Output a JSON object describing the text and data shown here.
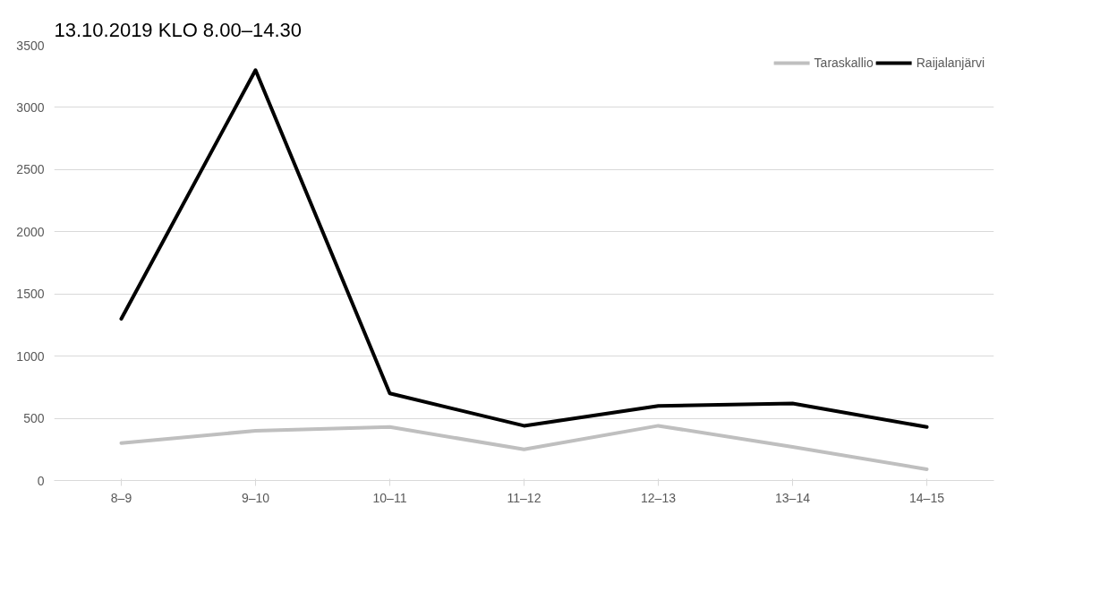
{
  "chart_data": {
    "type": "line",
    "title": "13.10.2019 KLO 8.00–14.30",
    "categories": [
      "8–9",
      "9–10",
      "10–11",
      "11–12",
      "12–13",
      "13–14",
      "14–15"
    ],
    "series": [
      {
        "name": "Taraskallio",
        "color": "#bfbfbf",
        "values": [
          300,
          400,
          430,
          250,
          440,
          270,
          90
        ]
      },
      {
        "name": "Raijalanjärvi",
        "color": "#000000",
        "values": [
          1300,
          3300,
          700,
          440,
          600,
          620,
          430
        ]
      }
    ],
    "ylim": [
      0,
      3500
    ],
    "yticks": [
      0,
      500,
      1000,
      1500,
      2000,
      2500,
      3000,
      3500
    ],
    "grid": "y",
    "legend": "top right",
    "marker": "none",
    "line_style": "solid"
  }
}
